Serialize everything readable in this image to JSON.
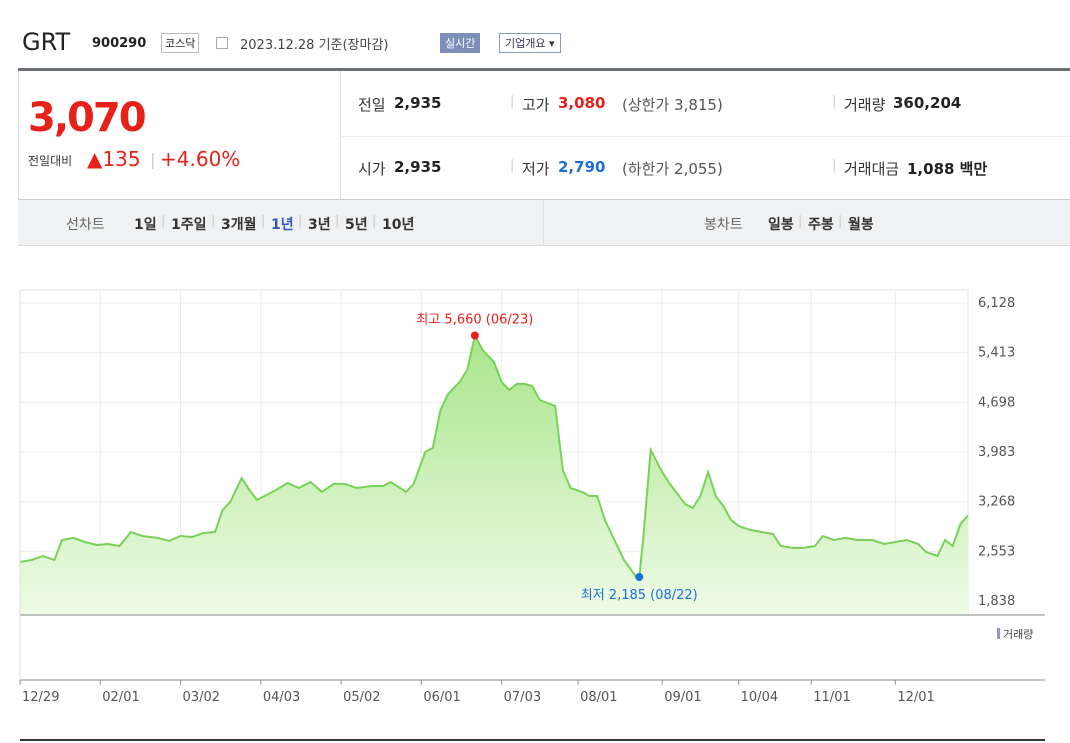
{
  "header": {
    "name": "GRT",
    "code": "900290",
    "market": "코스닥",
    "date": "2023.12.28 기준(장마감)",
    "realtime": "실시간",
    "company": "기업개요"
  },
  "quote": {
    "price": "3,070",
    "change_label": "전일대비",
    "change": "135",
    "rate": "+4.60%",
    "rows": [
      [
        {
          "label": "전일",
          "value": "2,935"
        },
        {
          "label": "고가",
          "value": "3,080",
          "extra": "(상한가 3,815)"
        },
        {
          "label": "거래량",
          "value": "360,204"
        }
      ],
      [
        {
          "label": "시가",
          "value": "2,935"
        },
        {
          "label": "저가",
          "value": "2,790",
          "extra": "(하한가 2,055)"
        },
        {
          "label": "거래대금",
          "value": "1,088 백만"
        }
      ]
    ]
  },
  "tabs": {
    "line_label": "선차트",
    "line_items": [
      "1일",
      "1주일",
      "3개월",
      "1년",
      "3년",
      "5년",
      "10년"
    ],
    "selected": "1년",
    "candle_label": "봉차트",
    "candle_items": [
      "일봉",
      "주봉",
      "월봉"
    ]
  },
  "chart_data": {
    "type": "line",
    "color": "#7ad15a",
    "fill": "#c9f0b4",
    "x": [
      0,
      3,
      6,
      9,
      11,
      14,
      17,
      20,
      23,
      26,
      29,
      32,
      36,
      39,
      42,
      45,
      48,
      51,
      53,
      55,
      58,
      60,
      62,
      64,
      67,
      70,
      73,
      76,
      79,
      82,
      85,
      88,
      92,
      95,
      97,
      101,
      103,
      106,
      108,
      110,
      112,
      115,
      117,
      119,
      121,
      124,
      126,
      128,
      130,
      132,
      134,
      136,
      138,
      140,
      142,
      144,
      147,
      149,
      151,
      153,
      155,
      158,
      161,
      162,
      163,
      165,
      168,
      170,
      172,
      174,
      176,
      178,
      180,
      182,
      184,
      186,
      188,
      191,
      194,
      197,
      199,
      202,
      205,
      208,
      210,
      213,
      216,
      219,
      223,
      226,
      229,
      232,
      235,
      237,
      240,
      242,
      244,
      246,
      248
    ],
    "values": [
      2401,
      2430,
      2487,
      2430,
      2718,
      2747,
      2689,
      2646,
      2660,
      2631,
      2833,
      2775,
      2747,
      2703,
      2775,
      2761,
      2818,
      2833,
      3149,
      3264,
      3610,
      3437,
      3294,
      3351,
      3437,
      3538,
      3466,
      3552,
      3409,
      3524,
      3524,
      3466,
      3495,
      3495,
      3552,
      3409,
      3524,
      3984,
      4042,
      4588,
      4819,
      4991,
      5164,
      5660,
      5452,
      5279,
      4991,
      4876,
      4963,
      4963,
      4934,
      4732,
      4689,
      4646,
      3725,
      3466,
      3409,
      3351,
      3351,
      3005,
      2775,
      2430,
      2200,
      2185,
      2718,
      4013,
      3696,
      3524,
      3380,
      3236,
      3178,
      3351,
      3696,
      3351,
      3207,
      3005,
      2919,
      2862,
      2833,
      2804,
      2631,
      2603,
      2603,
      2631,
      2775,
      2718,
      2747,
      2718,
      2718,
      2660,
      2689,
      2718,
      2660,
      2545,
      2487,
      2718,
      2631,
      2948,
      3070
    ],
    "xlim": [
      0,
      248
    ],
    "xticks": [
      {
        "value": 0,
        "label": "12/29"
      },
      {
        "value": 21,
        "label": "02/01"
      },
      {
        "value": 42,
        "label": "03/02"
      },
      {
        "value": 63,
        "label": "04/03"
      },
      {
        "value": 84,
        "label": "05/02"
      },
      {
        "value": 105,
        "label": "06/01"
      },
      {
        "value": 126,
        "label": "07/03"
      },
      {
        "value": 146,
        "label": "08/01"
      },
      {
        "value": 168,
        "label": "09/01"
      },
      {
        "value": 188,
        "label": "10/04"
      },
      {
        "value": 207,
        "label": "11/01"
      },
      {
        "value": 229,
        "label": "12/01"
      }
    ],
    "ylim": [
      1638,
      6315
    ],
    "yticks": [
      {
        "value": 1838,
        "label": "1,838"
      },
      {
        "value": 2553,
        "label": "2,553"
      },
      {
        "value": 3268,
        "label": "3,268"
      },
      {
        "value": 3983,
        "label": "3,983"
      },
      {
        "value": 4698,
        "label": "4,698"
      },
      {
        "value": 5413,
        "label": "5,413"
      },
      {
        "value": 6128,
        "label": "6,128"
      }
    ],
    "grid": true,
    "annotations": [
      {
        "text": "최고 5,660 (06/23)",
        "x": 119,
        "value": 5660,
        "color": "#e8201a"
      },
      {
        "text": "최저 2,185 (08/22)",
        "x": 162,
        "value": 2185,
        "color": "#1d6fd8"
      }
    ],
    "volume_label": "거래량"
  }
}
